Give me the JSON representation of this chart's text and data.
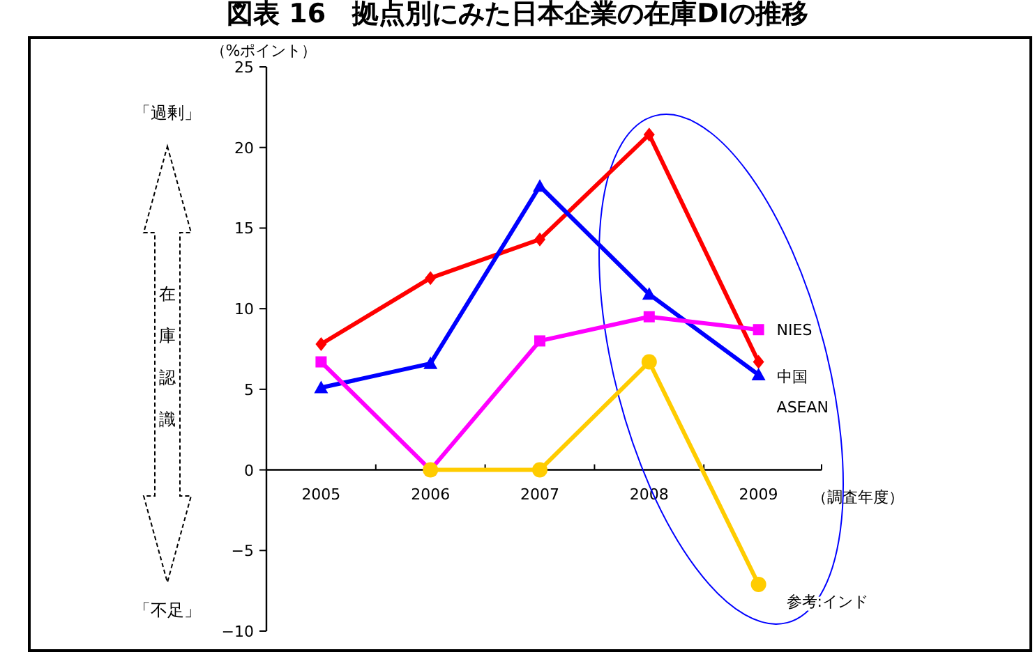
{
  "chart_data": {
    "type": "line",
    "title": "図表 16　拠点別にみた日本企業の在庫DIの推移",
    "ylabel": "（%ポイント）",
    "xlabel": "（調査年度）",
    "annotations": [
      "「過剰」",
      "在庫認識",
      "「不足」"
    ],
    "categories": [
      "2005",
      "2006",
      "2007",
      "2008",
      "2009"
    ],
    "ylim": [
      -10,
      25
    ],
    "yticks": [
      -10,
      -5,
      0,
      5,
      10,
      15,
      20,
      25
    ],
    "series": [
      {
        "name": "中国",
        "color": "#ff0000",
        "marker": "diamond",
        "values": [
          7.8,
          11.9,
          14.3,
          20.8,
          6.7
        ]
      },
      {
        "name": "ASEAN",
        "color": "#0000ff",
        "marker": "triangle",
        "values": [
          5.1,
          6.6,
          17.6,
          10.9,
          5.9
        ]
      },
      {
        "name": "NIES",
        "color": "#ff00ff",
        "marker": "square",
        "values": [
          6.7,
          0,
          8.0,
          9.5,
          8.7
        ]
      },
      {
        "name": "参考:インド",
        "color": "#ffcc00",
        "marker": "circle",
        "values": [
          null,
          0,
          0,
          6.7,
          -7.1
        ]
      }
    ]
  }
}
